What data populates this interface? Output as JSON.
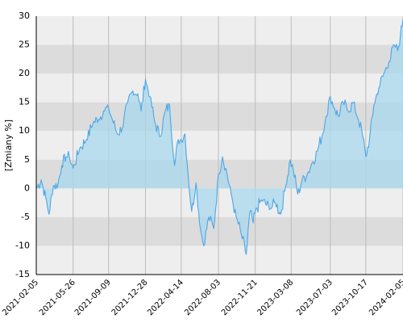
{
  "chart_data": {
    "type": "area",
    "ylabel": "[Zmiany %]",
    "ylim": [
      -15,
      30
    ],
    "y_ticks": [
      30,
      25,
      20,
      15,
      10,
      5,
      0,
      -5,
      -10,
      -15
    ],
    "x_range": [
      "2021-02-05",
      "2024-02-05"
    ],
    "x_ticks": [
      "2021-02-05",
      "2021-05-26",
      "2021-09-09",
      "2021-12-28",
      "2022-04-14",
      "2022-08-03",
      "2022-11-21",
      "2023-03-08",
      "2023-07-03",
      "2023-10-17",
      "2024-02-05"
    ],
    "grid": true,
    "colors": {
      "line": "#4da6e8",
      "fill": "#a8d8ec",
      "band_light": "#eeeeee",
      "band_dark": "#dcdcdc",
      "gridline": "#bbbbbb"
    },
    "series": [
      {
        "points": [
          [
            "2021-02-05",
            0.0
          ],
          [
            "2021-02-20",
            1.5
          ],
          [
            "2021-03-05",
            -1.5
          ],
          [
            "2021-03-15",
            -4.5
          ],
          [
            "2021-03-28",
            0.5
          ],
          [
            "2021-04-10",
            0.5
          ],
          [
            "2021-04-22",
            4.0
          ],
          [
            "2021-05-05",
            5.5
          ],
          [
            "2021-05-15",
            5.5
          ],
          [
            "2021-05-26",
            3.5
          ],
          [
            "2021-06-15",
            7.0
          ],
          [
            "2021-07-05",
            8.5
          ],
          [
            "2021-07-25",
            11.5
          ],
          [
            "2021-08-10",
            12.0
          ],
          [
            "2021-08-25",
            13.5
          ],
          [
            "2021-09-09",
            14.0
          ],
          [
            "2021-09-20",
            12.0
          ],
          [
            "2021-10-05",
            9.5
          ],
          [
            "2021-10-20",
            10.5
          ],
          [
            "2021-11-05",
            15.0
          ],
          [
            "2021-11-20",
            17.0
          ],
          [
            "2021-12-05",
            16.5
          ],
          [
            "2021-12-15",
            13.5
          ],
          [
            "2021-12-28",
            19.0
          ],
          [
            "2022-01-10",
            16.0
          ],
          [
            "2022-01-25",
            11.5
          ],
          [
            "2022-02-10",
            9.0
          ],
          [
            "2022-02-25",
            13.5
          ],
          [
            "2022-03-10",
            14.5
          ],
          [
            "2022-03-25",
            4.0
          ],
          [
            "2022-04-05",
            8.5
          ],
          [
            "2022-04-14",
            8.5
          ],
          [
            "2022-04-25",
            9.5
          ],
          [
            "2022-05-05",
            2.0
          ],
          [
            "2022-05-15",
            -4.0
          ],
          [
            "2022-05-28",
            1.0
          ],
          [
            "2022-06-10",
            -7.0
          ],
          [
            "2022-06-20",
            -10.0
          ],
          [
            "2022-07-05",
            -5.0
          ],
          [
            "2022-07-20",
            -7.0
          ],
          [
            "2022-08-03",
            2.5
          ],
          [
            "2022-08-15",
            5.5
          ],
          [
            "2022-08-25",
            3.5
          ],
          [
            "2022-09-10",
            -1.0
          ],
          [
            "2022-09-25",
            -5.0
          ],
          [
            "2022-10-10",
            -8.0
          ],
          [
            "2022-10-25",
            -11.5
          ],
          [
            "2022-11-05",
            -4.0
          ],
          [
            "2022-11-15",
            -6.0
          ],
          [
            "2022-11-21",
            -4.0
          ],
          [
            "2022-12-10",
            -2.0
          ],
          [
            "2023-01-05",
            -3.5
          ],
          [
            "2023-01-20",
            -2.5
          ],
          [
            "2023-02-05",
            -4.5
          ],
          [
            "2023-02-20",
            0.5
          ],
          [
            "2023-03-05",
            5.0
          ],
          [
            "2023-03-15",
            3.0
          ],
          [
            "2023-03-28",
            -1.0
          ],
          [
            "2023-04-10",
            1.5
          ],
          [
            "2023-04-25",
            2.5
          ],
          [
            "2023-05-10",
            4.5
          ],
          [
            "2023-05-25",
            6.5
          ],
          [
            "2023-06-10",
            9.5
          ],
          [
            "2023-06-20",
            12.5
          ],
          [
            "2023-07-03",
            16.0
          ],
          [
            "2023-07-15",
            14.0
          ],
          [
            "2023-07-28",
            12.5
          ],
          [
            "2023-08-10",
            15.0
          ],
          [
            "2023-08-25",
            13.5
          ],
          [
            "2023-09-10",
            15.0
          ],
          [
            "2023-09-25",
            12.0
          ],
          [
            "2023-10-05",
            10.0
          ],
          [
            "2023-10-17",
            5.5
          ],
          [
            "2023-10-28",
            8.5
          ],
          [
            "2023-11-10",
            14.5
          ],
          [
            "2023-11-25",
            17.5
          ],
          [
            "2023-12-10",
            20.0
          ],
          [
            "2023-12-25",
            22.0
          ],
          [
            "2024-01-10",
            25.0
          ],
          [
            "2024-01-20",
            24.0
          ],
          [
            "2024-01-28",
            26.5
          ],
          [
            "2024-02-05",
            29.5
          ]
        ]
      }
    ]
  }
}
